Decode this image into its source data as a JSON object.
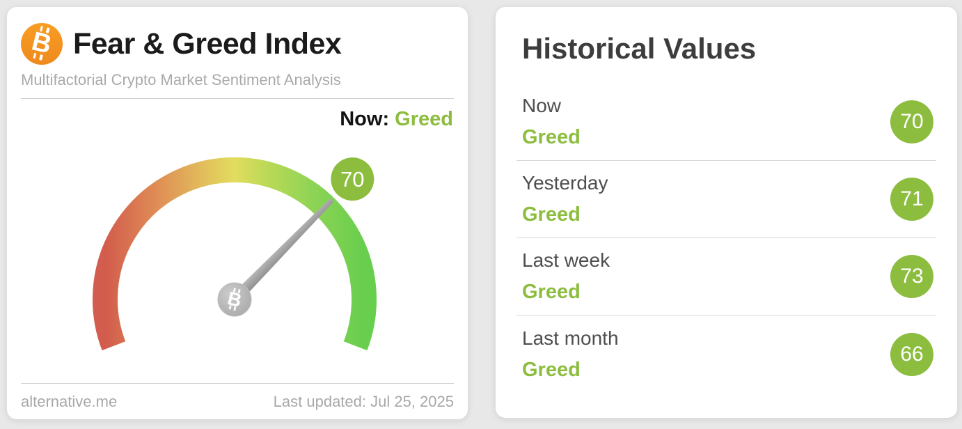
{
  "page": {
    "background_color": "#e8e8e9"
  },
  "left_card": {
    "title": "Fear & Greed Index",
    "subtitle": "Multifactorial Crypto Market Sentiment Analysis",
    "now_label": "Now:",
    "now_classification": "Greed",
    "gauge": {
      "type": "gauge",
      "value": 70,
      "min": 0,
      "max": 100,
      "classification": "Greed"
    },
    "footer": {
      "source": "alternative.me",
      "last_updated": "Last updated: Jul 25, 2025"
    }
  },
  "right_card": {
    "title": "Historical Values",
    "rows": [
      {
        "label": "Now",
        "classification": "Greed",
        "value": 70
      },
      {
        "label": "Yesterday",
        "classification": "Greed",
        "value": 71
      },
      {
        "label": "Last week",
        "classification": "Greed",
        "value": 73
      },
      {
        "label": "Last month",
        "classification": "Greed",
        "value": 66
      }
    ]
  },
  "colors": {
    "accent_green": "#8cbd3f",
    "bitcoin_orange": "#f49322",
    "needle_gray": "#a5a5a5",
    "gauge_gradient": [
      "#d25c4d",
      "#df8d55",
      "#e2c35c",
      "#e2dd5e",
      "#bcd957",
      "#8ed455",
      "#68ce4d"
    ]
  }
}
